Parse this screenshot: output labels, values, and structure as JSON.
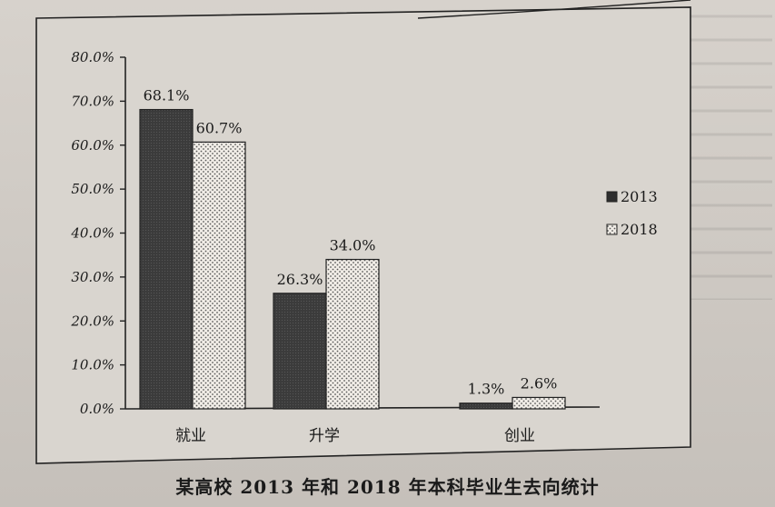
{
  "chart_data": {
    "type": "bar",
    "title": "某高校 2013 年和 2018 年本科毕业生去向统计",
    "categories": [
      "就业",
      "升学",
      "创业"
    ],
    "series": [
      {
        "name": "2013",
        "values": [
          68.1,
          26.3,
          1.3
        ],
        "labels": [
          "68.1%",
          "26.3%",
          "1.3%"
        ],
        "color": "#3a3a3a"
      },
      {
        "name": "2018",
        "values": [
          60.7,
          34.0,
          2.6
        ],
        "labels": [
          "60.7%",
          "34.0%",
          "2.6%"
        ],
        "color": "#f2efe9"
      }
    ],
    "ylim": [
      0,
      80
    ],
    "yticks": [
      "0.0%",
      "10.0%",
      "20.0%",
      "30.0%",
      "40.0%",
      "50.0%",
      "60.0%",
      "70.0%",
      "80.0%"
    ],
    "xlabel": "",
    "ylabel": "",
    "legend": {
      "placement": "right",
      "entries": [
        "2013",
        "2018"
      ]
    },
    "grid": false
  }
}
